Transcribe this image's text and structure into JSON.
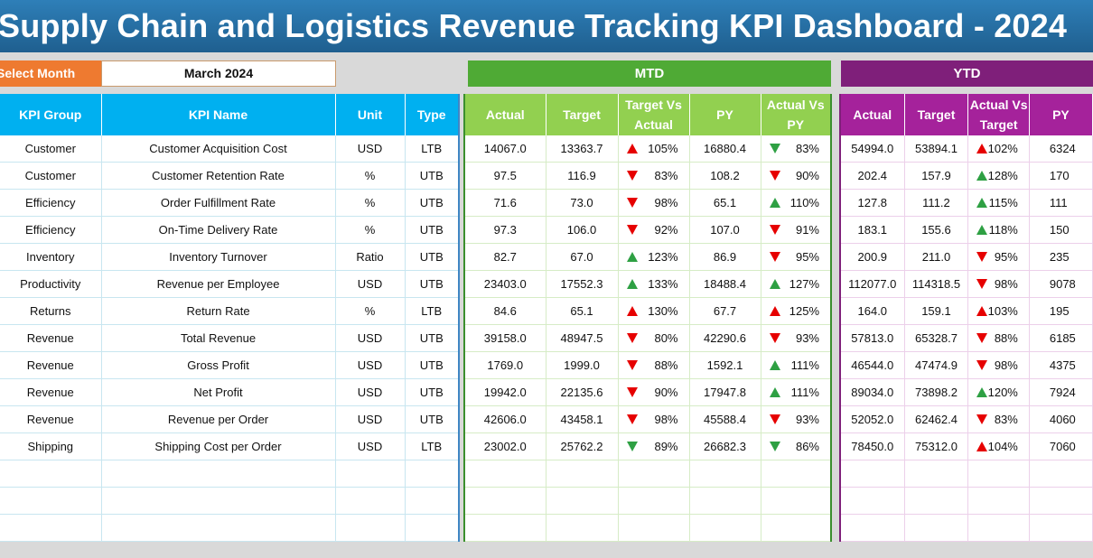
{
  "title": "Supply Chain and Logistics Revenue Tracking KPI Dashboard - 2024",
  "select_month": {
    "label": "Select Month",
    "value": "March 2024"
  },
  "mtd_label": "MTD",
  "ytd_label": "YTD",
  "left_headers": [
    "KPI Group",
    "KPI Name",
    "Unit",
    "Type"
  ],
  "mtd_headers": [
    "Actual",
    "Target",
    "Target Vs Actual",
    "PY",
    "Actual Vs PY"
  ],
  "ytd_headers": [
    "Actual",
    "Target",
    "Actual Vs Target",
    "PY"
  ],
  "colors": {
    "title_bg": "#1f5f8f",
    "select_label_bg": "#ee7a30",
    "mtd_accent": "#4faa35",
    "mtd_header": "#92d050",
    "ytd_accent": "#7f1f7a",
    "ytd_header": "#a5229b",
    "left_header": "#00b0f0",
    "arrow_green": "#2ea043",
    "arrow_red": "#e60000"
  },
  "rows": [
    {
      "group": "Customer",
      "name": "Customer Acquisition Cost",
      "unit": "USD",
      "type": "LTB",
      "mtd": {
        "actual": "14067.0",
        "target": "13363.7",
        "tva": "105%",
        "tva_icon": "up-red",
        "py": "16880.4",
        "avp": "83%",
        "avp_icon": "down-green"
      },
      "ytd": {
        "actual": "54994.0",
        "target": "53894.1",
        "avt": "102%",
        "avt_icon": "up-red",
        "py": "6324"
      }
    },
    {
      "group": "Customer",
      "name": "Customer Retention Rate",
      "unit": "%",
      "type": "UTB",
      "mtd": {
        "actual": "97.5",
        "target": "116.9",
        "tva": "83%",
        "tva_icon": "down-red",
        "py": "108.2",
        "avp": "90%",
        "avp_icon": "down-red"
      },
      "ytd": {
        "actual": "202.4",
        "target": "157.9",
        "avt": "128%",
        "avt_icon": "up-green",
        "py": "170"
      }
    },
    {
      "group": "Efficiency",
      "name": "Order Fulfillment Rate",
      "unit": "%",
      "type": "UTB",
      "mtd": {
        "actual": "71.6",
        "target": "73.0",
        "tva": "98%",
        "tva_icon": "down-red",
        "py": "65.1",
        "avp": "110%",
        "avp_icon": "up-green"
      },
      "ytd": {
        "actual": "127.8",
        "target": "111.2",
        "avt": "115%",
        "avt_icon": "up-green",
        "py": "111"
      }
    },
    {
      "group": "Efficiency",
      "name": "On-Time Delivery Rate",
      "unit": "%",
      "type": "UTB",
      "mtd": {
        "actual": "97.3",
        "target": "106.0",
        "tva": "92%",
        "tva_icon": "down-red",
        "py": "107.0",
        "avp": "91%",
        "avp_icon": "down-red"
      },
      "ytd": {
        "actual": "183.1",
        "target": "155.6",
        "avt": "118%",
        "avt_icon": "up-green",
        "py": "150"
      }
    },
    {
      "group": "Inventory",
      "name": "Inventory Turnover",
      "unit": "Ratio",
      "type": "UTB",
      "mtd": {
        "actual": "82.7",
        "target": "67.0",
        "tva": "123%",
        "tva_icon": "up-green",
        "py": "86.9",
        "avp": "95%",
        "avp_icon": "down-red"
      },
      "ytd": {
        "actual": "200.9",
        "target": "211.0",
        "avt": "95%",
        "avt_icon": "down-red",
        "py": "235"
      }
    },
    {
      "group": "Productivity",
      "name": "Revenue per Employee",
      "unit": "USD",
      "type": "UTB",
      "mtd": {
        "actual": "23403.0",
        "target": "17552.3",
        "tva": "133%",
        "tva_icon": "up-green",
        "py": "18488.4",
        "avp": "127%",
        "avp_icon": "up-green"
      },
      "ytd": {
        "actual": "112077.0",
        "target": "114318.5",
        "avt": "98%",
        "avt_icon": "down-red",
        "py": "9078"
      }
    },
    {
      "group": "Returns",
      "name": "Return Rate",
      "unit": "%",
      "type": "LTB",
      "mtd": {
        "actual": "84.6",
        "target": "65.1",
        "tva": "130%",
        "tva_icon": "up-red",
        "py": "67.7",
        "avp": "125%",
        "avp_icon": "up-red"
      },
      "ytd": {
        "actual": "164.0",
        "target": "159.1",
        "avt": "103%",
        "avt_icon": "up-red",
        "py": "195"
      }
    },
    {
      "group": "Revenue",
      "name": "Total Revenue",
      "unit": "USD",
      "type": "UTB",
      "mtd": {
        "actual": "39158.0",
        "target": "48947.5",
        "tva": "80%",
        "tva_icon": "down-red",
        "py": "42290.6",
        "avp": "93%",
        "avp_icon": "down-red"
      },
      "ytd": {
        "actual": "57813.0",
        "target": "65328.7",
        "avt": "88%",
        "avt_icon": "down-red",
        "py": "6185"
      }
    },
    {
      "group": "Revenue",
      "name": "Gross Profit",
      "unit": "USD",
      "type": "UTB",
      "mtd": {
        "actual": "1769.0",
        "target": "1999.0",
        "tva": "88%",
        "tva_icon": "down-red",
        "py": "1592.1",
        "avp": "111%",
        "avp_icon": "up-green"
      },
      "ytd": {
        "actual": "46544.0",
        "target": "47474.9",
        "avt": "98%",
        "avt_icon": "down-red",
        "py": "4375"
      }
    },
    {
      "group": "Revenue",
      "name": "Net Profit",
      "unit": "USD",
      "type": "UTB",
      "mtd": {
        "actual": "19942.0",
        "target": "22135.6",
        "tva": "90%",
        "tva_icon": "down-red",
        "py": "17947.8",
        "avp": "111%",
        "avp_icon": "up-green"
      },
      "ytd": {
        "actual": "89034.0",
        "target": "73898.2",
        "avt": "120%",
        "avt_icon": "up-green",
        "py": "7924"
      }
    },
    {
      "group": "Revenue",
      "name": "Revenue per Order",
      "unit": "USD",
      "type": "UTB",
      "mtd": {
        "actual": "42606.0",
        "target": "43458.1",
        "tva": "98%",
        "tva_icon": "down-red",
        "py": "45588.4",
        "avp": "93%",
        "avp_icon": "down-red"
      },
      "ytd": {
        "actual": "52052.0",
        "target": "62462.4",
        "avt": "83%",
        "avt_icon": "down-red",
        "py": "4060"
      }
    },
    {
      "group": "Shipping",
      "name": "Shipping Cost per Order",
      "unit": "USD",
      "type": "LTB",
      "mtd": {
        "actual": "23002.0",
        "target": "25762.2",
        "tva": "89%",
        "tva_icon": "down-green",
        "py": "26682.3",
        "avp": "86%",
        "avp_icon": "down-green"
      },
      "ytd": {
        "actual": "78450.0",
        "target": "75312.0",
        "avt": "104%",
        "avt_icon": "up-red",
        "py": "7060"
      }
    }
  ]
}
